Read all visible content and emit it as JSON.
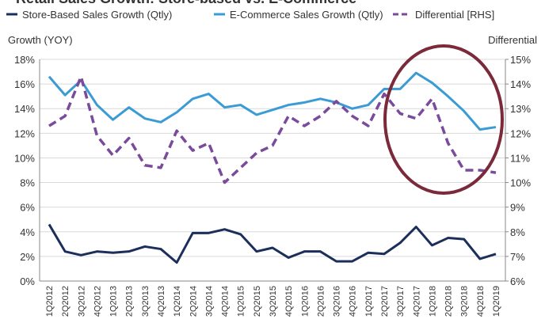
{
  "chart_data": {
    "type": "line",
    "title": "Retail Sales Growth: Store-based vs. E-Commerce",
    "y_label": "Growth (YOY)",
    "y2_label": "Differential",
    "categories": [
      "1Q2012",
      "2Q2012",
      "3Q2012",
      "4Q2012",
      "1Q2013",
      "2Q2013",
      "3Q2013",
      "4Q2013",
      "1Q2014",
      "2Q2014",
      "3Q2014",
      "4Q2014",
      "1Q2015",
      "2Q2015",
      "3Q2015",
      "4Q2015",
      "1Q2016",
      "2Q2016",
      "3Q2016",
      "4Q2016",
      "1Q2017",
      "2Q2017",
      "3Q2017",
      "4Q2017",
      "1Q2018",
      "2Q2018",
      "3Q2018",
      "4Q2018",
      "1Q2019"
    ],
    "series": [
      {
        "name": "Store-Based Sales Growth (Qtly)",
        "color": "#1b2f5a",
        "dash": false,
        "values": [
          4.6,
          2.4,
          2.1,
          2.4,
          2.3,
          2.4,
          2.8,
          2.6,
          1.5,
          3.9,
          3.9,
          4.2,
          3.8,
          2.4,
          2.7,
          1.9,
          2.4,
          2.4,
          1.6,
          1.6,
          2.3,
          2.2,
          3.1,
          4.4,
          2.9,
          3.5,
          3.4,
          1.8,
          2.2
        ]
      },
      {
        "name": "E-Commerce Sales Growth (Qtly)",
        "color": "#3a9bd5",
        "dash": false,
        "values": [
          16.6,
          15.1,
          16.3,
          14.3,
          13.1,
          14.1,
          13.2,
          12.9,
          13.7,
          14.8,
          15.2,
          14.1,
          14.3,
          13.5,
          13.9,
          14.3,
          14.5,
          14.8,
          14.5,
          14.0,
          14.3,
          15.6,
          15.6,
          16.9,
          16.1,
          15.0,
          13.8,
          12.3,
          12.5
        ]
      },
      {
        "name": "Differential [RHS]",
        "color": "#7a4b9c",
        "dash": true,
        "axis": "y2",
        "values": [
          12.3,
          12.7,
          14.3,
          11.9,
          11.1,
          11.8,
          10.7,
          10.6,
          12.1,
          11.3,
          11.6,
          10.0,
          10.6,
          11.2,
          11.5,
          12.7,
          12.3,
          12.7,
          13.3,
          12.7,
          12.3,
          13.6,
          12.8,
          12.6,
          13.4,
          11.6,
          10.5,
          10.5,
          10.4
        ]
      }
    ],
    "ylim": [
      0,
      18
    ],
    "yticks": [
      {
        "value": 0,
        "label": "0%"
      },
      {
        "value": 2,
        "label": "2%"
      },
      {
        "value": 4,
        "label": "4%"
      },
      {
        "value": 6,
        "label": "6%"
      },
      {
        "value": 8,
        "label": "8%"
      },
      {
        "value": 10,
        "label": "10%"
      },
      {
        "value": 12,
        "label": "12%"
      },
      {
        "value": 14,
        "label": "14%"
      },
      {
        "value": 16,
        "label": "16%"
      },
      {
        "value": 18,
        "label": "18%"
      }
    ],
    "y2lim": [
      6,
      15
    ],
    "y2ticks": [
      {
        "value": 6,
        "label": "6%"
      },
      {
        "value": 7,
        "label": "7%"
      },
      {
        "value": 8,
        "label": "8%"
      },
      {
        "value": 9,
        "label": "9%"
      },
      {
        "value": 10,
        "label": "10%"
      },
      {
        "value": 11,
        "label": "11%"
      },
      {
        "value": 12,
        "label": "12%"
      },
      {
        "value": 13,
        "label": "13%"
      },
      {
        "value": 14,
        "label": "14%"
      },
      {
        "value": 15,
        "label": "15%"
      }
    ],
    "grid": true,
    "legend": "top"
  }
}
